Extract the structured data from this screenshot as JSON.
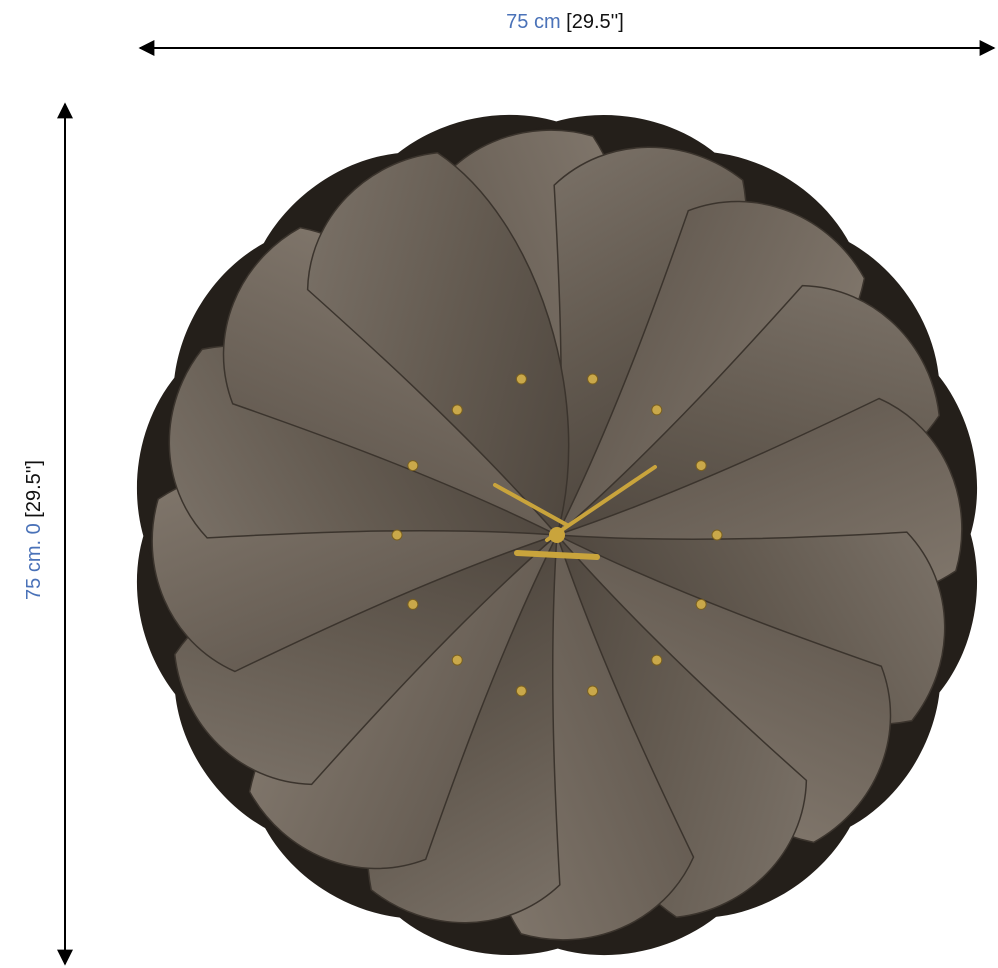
{
  "width_label": {
    "metric": "75 cm",
    "imperial": "[29.5'']"
  },
  "height_label": {
    "metric": "75 cm. 0",
    "imperial": "[29.5'']"
  }
}
